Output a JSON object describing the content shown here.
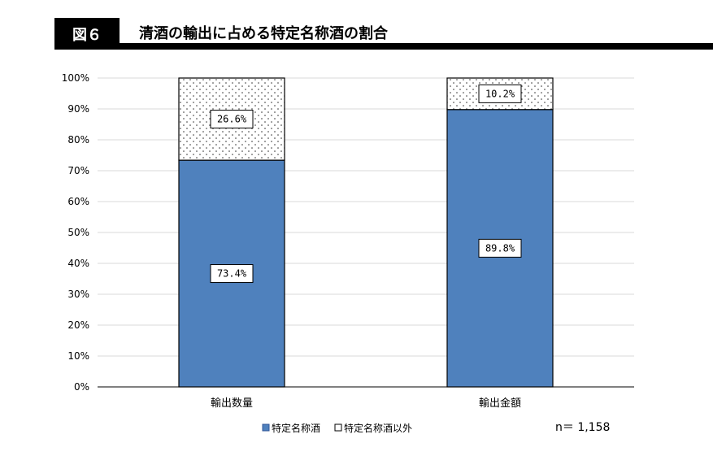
{
  "header": {
    "figure_label": "図６",
    "title": "清酒の輸出に占める特定名称酒の割合"
  },
  "note": "n＝ 1,158",
  "colors": {
    "series_primary": "#4f81bd",
    "series_secondary": "#ffffff",
    "grid": "#d9d9d9"
  },
  "chart_data": {
    "type": "bar",
    "stacked": true,
    "categories": [
      "輸出数量",
      "輸出金額"
    ],
    "series": [
      {
        "name": "特定名称酒",
        "values": [
          73.4,
          89.8
        ],
        "labels": [
          "73.4%",
          "89.8%"
        ],
        "fill": "solid"
      },
      {
        "name": "特定名称酒以外",
        "values": [
          26.6,
          10.2
        ],
        "labels": [
          "26.6%",
          "10.2%"
        ],
        "fill": "dotted"
      }
    ],
    "y_ticks": [
      "0%",
      "10%",
      "20%",
      "30%",
      "40%",
      "50%",
      "60%",
      "70%",
      "80%",
      "90%",
      "100%"
    ],
    "ylim": [
      0,
      100
    ],
    "grid": true,
    "legend_position": "bottom"
  }
}
